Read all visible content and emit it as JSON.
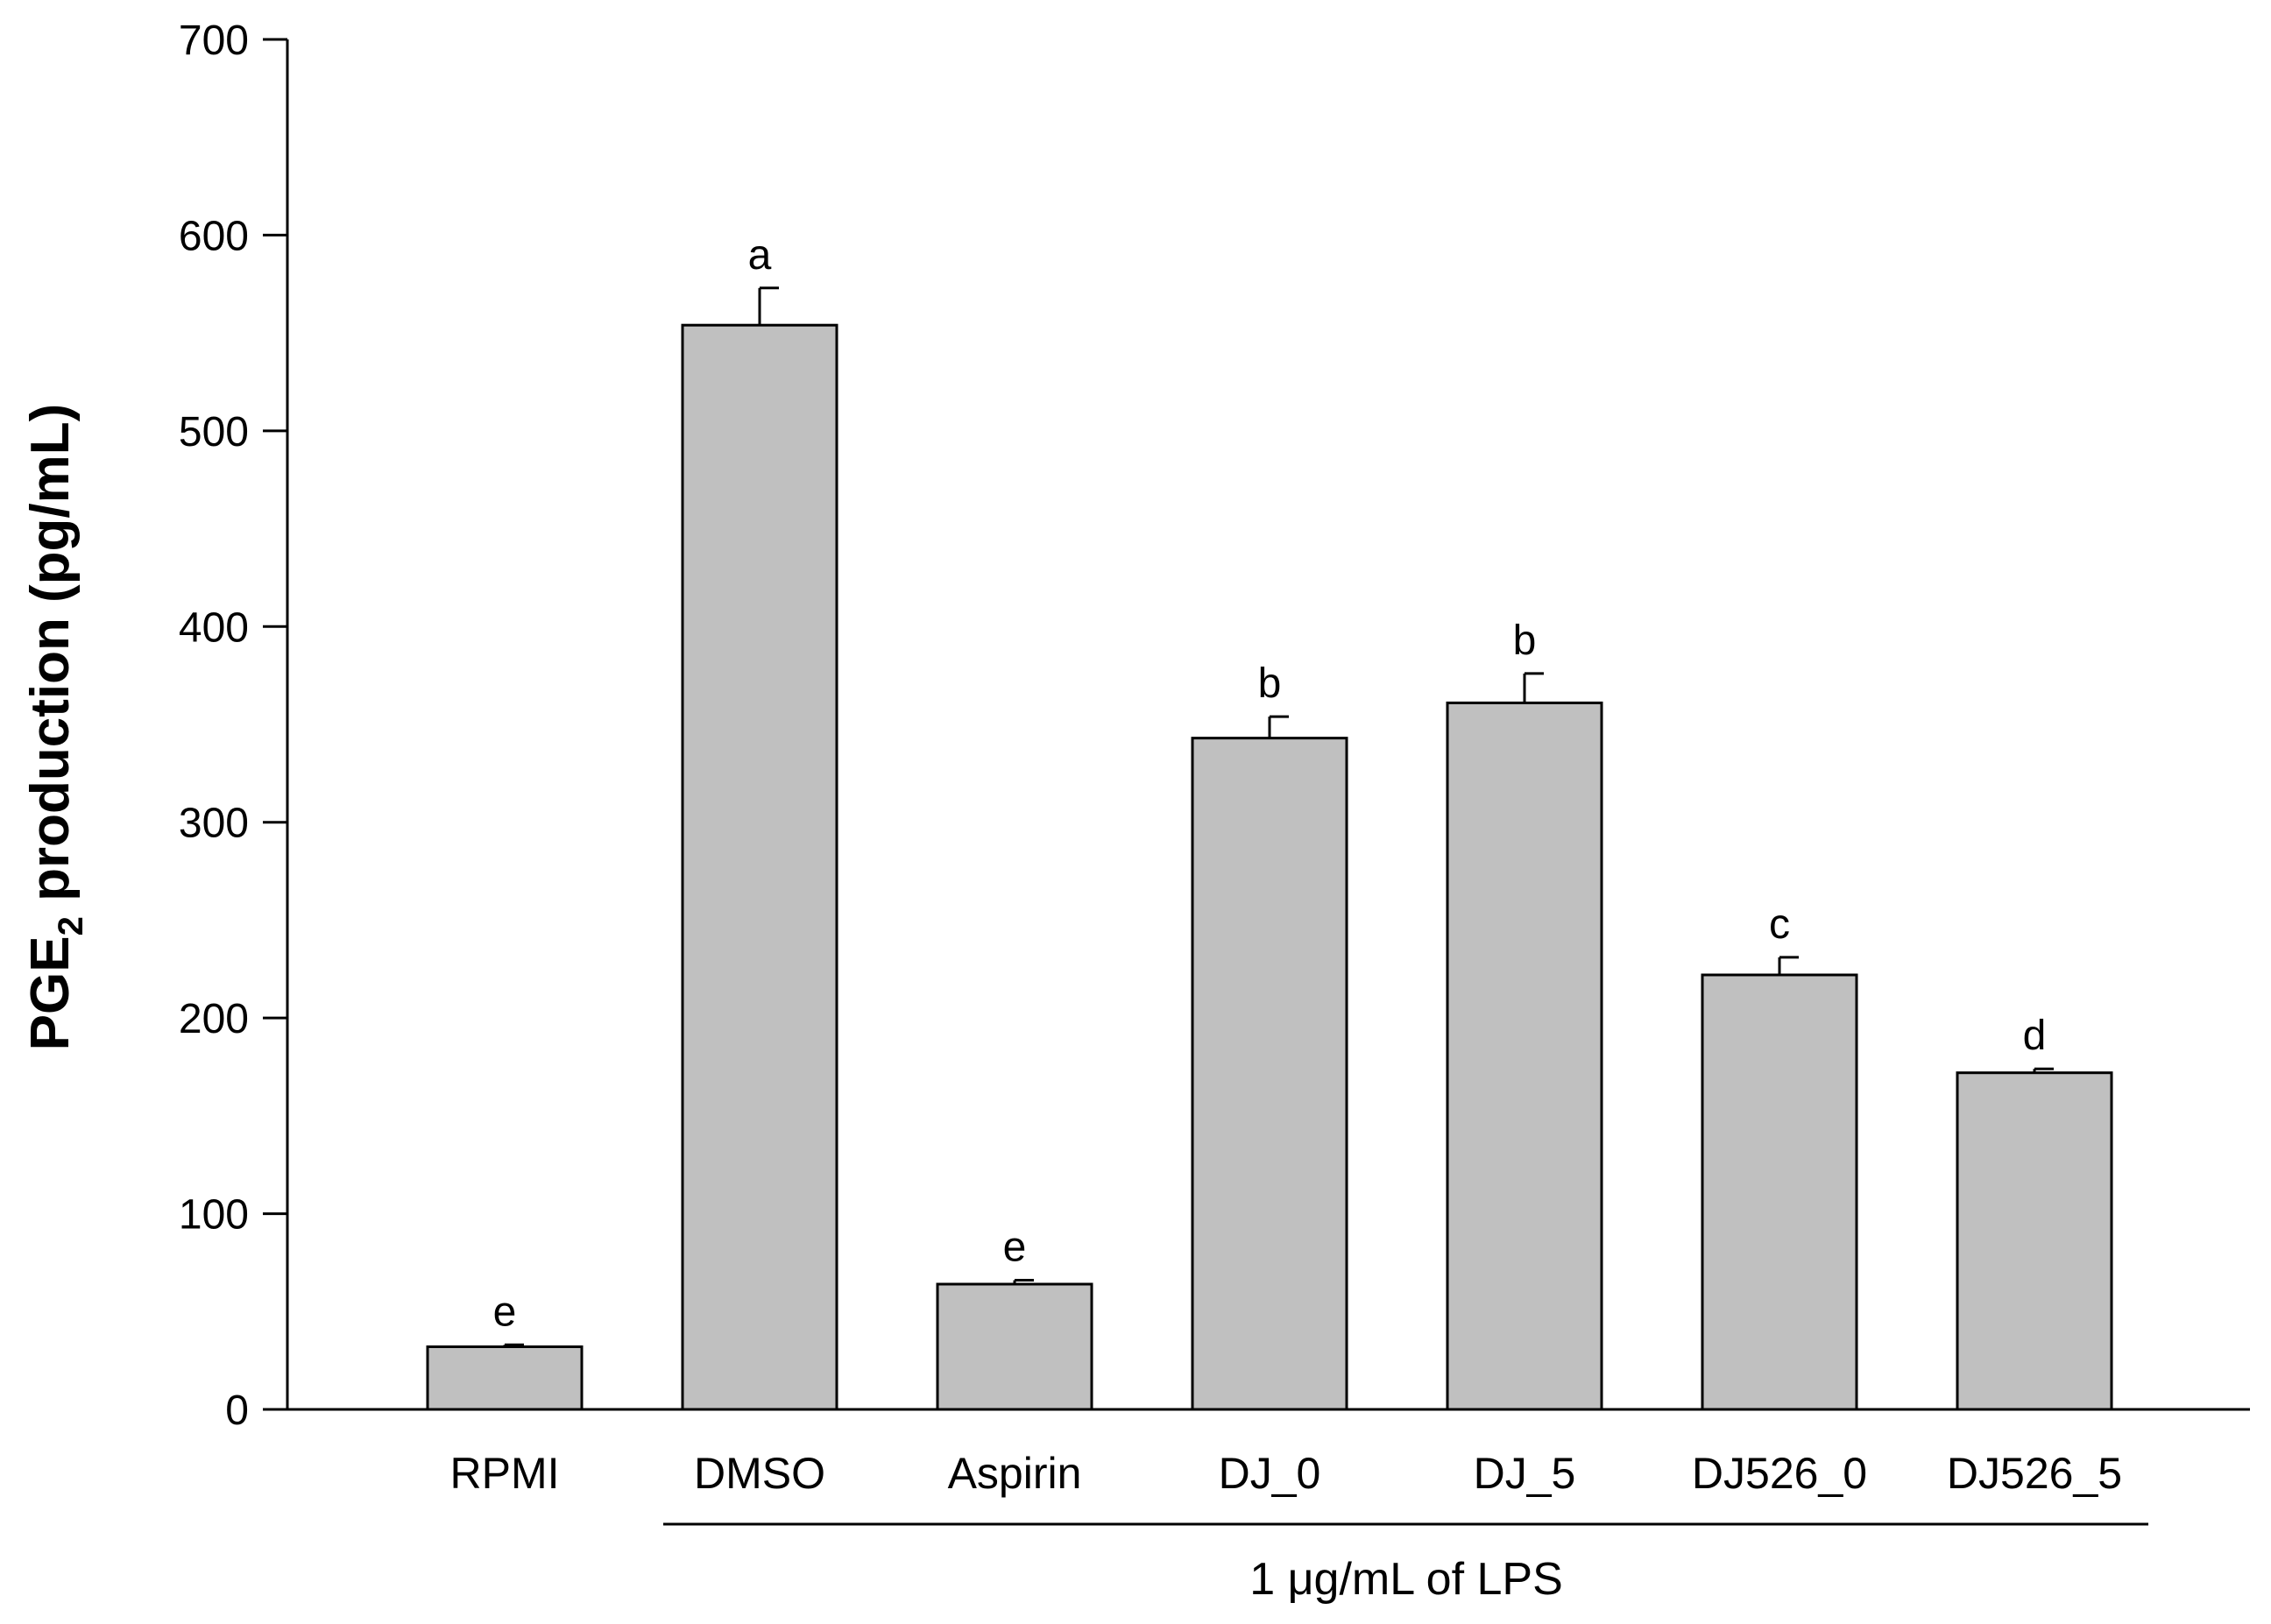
{
  "chart_data": {
    "type": "bar",
    "title": "",
    "categories": [
      "RPMI",
      "DMSO",
      "Aspirin",
      "DJ_0",
      "DJ_5",
      "DJ526_0",
      "DJ526_5"
    ],
    "values": [
      32,
      554,
      64,
      343,
      361,
      222,
      172
    ],
    "errors": [
      1,
      19,
      2,
      11,
      15,
      9,
      2
    ],
    "significance": [
      "e",
      "a",
      "e",
      "b",
      "b",
      "c",
      "d"
    ],
    "ylabel": {
      "main": "PGE",
      "subscript": "2",
      "rest": " production (pg/mL)"
    },
    "ylim": [
      0,
      700
    ],
    "yticks": [
      0,
      100,
      200,
      300,
      400,
      500,
      600,
      700
    ],
    "group_label": "1 μg/mL of LPS",
    "group_range": [
      "DMSO",
      "DJ526_5"
    ],
    "bar_color": "#c0c0c0",
    "grid": false,
    "legend": "none"
  }
}
